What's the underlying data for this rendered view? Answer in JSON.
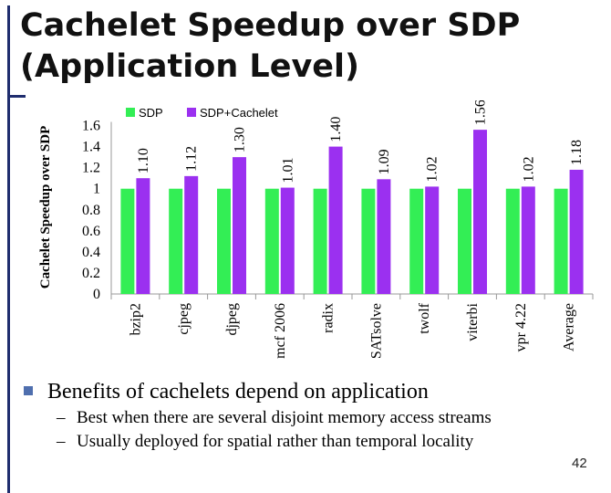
{
  "slide": {
    "title_line1": "Cachelet Speedup over SDP",
    "title_line2": "(Application Level)",
    "bullet": "Benefits of cachelets depend on application",
    "sub_bullets": [
      "Best when there are several disjoint memory access streams",
      "Usually deployed for spatial rather than temporal locality"
    ],
    "page_number": "42"
  },
  "chart_data": {
    "type": "bar",
    "categories": [
      "bzip2",
      "cjpeg",
      "djpeg",
      "mcf 2006",
      "radix",
      "SATsolve",
      "twolf",
      "viterbi",
      "vpr 4.22",
      "Average"
    ],
    "series": [
      {
        "name": "SDP",
        "color": "#33ee55",
        "values": [
          1,
          1,
          1,
          1,
          1,
          1,
          1,
          1,
          1,
          1
        ]
      },
      {
        "name": "SDP+Cachelet",
        "color": "#9b30f0",
        "values": [
          1.1,
          1.12,
          1.3,
          1.01,
          1.4,
          1.09,
          1.02,
          1.56,
          1.02,
          1.18
        ]
      }
    ],
    "data_labels": [
      "1.10",
      "1.12",
      "1.30",
      "1.01",
      "1.40",
      "1.09",
      "1.02",
      "1.56",
      "1.02",
      "1.18"
    ],
    "ylabel": "Cachelet Speedup over SDP",
    "yticks": [
      "0",
      "0.2",
      "0.4",
      "0.6",
      "0.8",
      "1",
      "1.2",
      "1.4",
      "1.6"
    ],
    "ylim": [
      0,
      1.7
    ],
    "legend_position": "top",
    "grid": false
  }
}
